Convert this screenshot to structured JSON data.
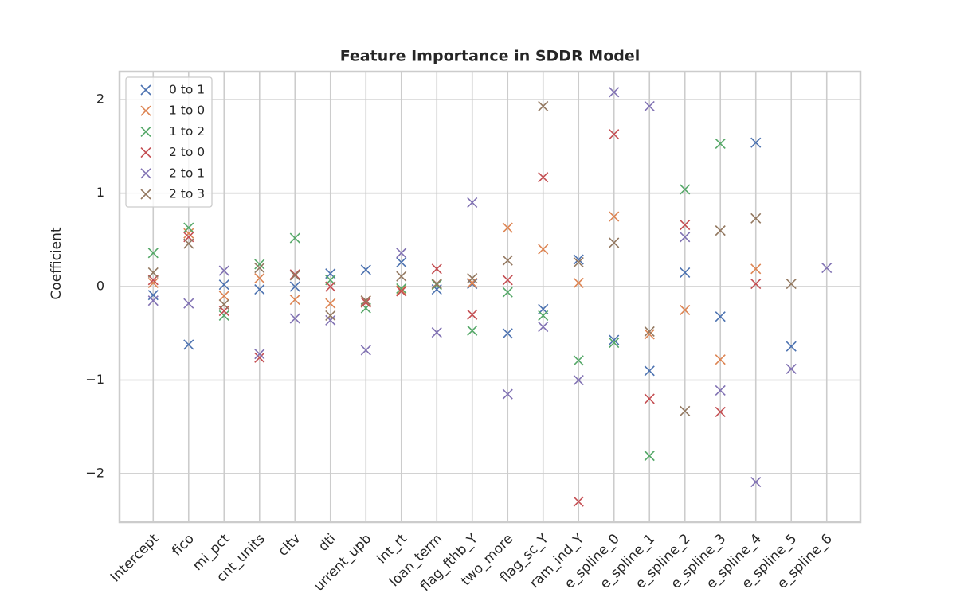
{
  "chart_data": {
    "type": "scatter",
    "title": "Feature Importance in SDDR Model",
    "y_label": "Coefficient",
    "categories": [
      "Intercept",
      "fico",
      "mi_pct",
      "cnt_units",
      "cltv",
      "dti",
      "urrent_upb",
      "int_rt",
      "loan_term",
      "flag_fthb_Y",
      "two_more",
      "flag_sc_Y",
      "ram_ind_Y",
      "e_spline_0",
      "e_spline_1",
      "e_spline_2",
      "e_spline_3",
      "e_spline_4",
      "e_spline_5",
      "e_spline_6"
    ],
    "series": [
      {
        "name": "0 to 1",
        "color": "#4c72b0",
        "values": [
          -0.09,
          -0.62,
          0.02,
          -0.03,
          0.0,
          0.14,
          0.18,
          0.26,
          -0.03,
          0.03,
          -0.5,
          -0.24,
          0.29,
          -0.57,
          -0.9,
          0.15,
          -0.32,
          1.54,
          -0.64,
          null
        ]
      },
      {
        "name": "1 to 0",
        "color": "#dd8452",
        "values": [
          0.04,
          0.57,
          -0.1,
          0.09,
          -0.14,
          -0.18,
          -0.15,
          -0.04,
          0.03,
          0.04,
          0.63,
          0.4,
          0.04,
          0.75,
          -0.51,
          -0.25,
          -0.78,
          0.19,
          null,
          null
        ]
      },
      {
        "name": "1 to 2",
        "color": "#55a868",
        "values": [
          0.36,
          0.63,
          -0.31,
          0.24,
          0.52,
          0.07,
          -0.23,
          -0.02,
          0.02,
          -0.47,
          -0.06,
          -0.31,
          -0.79,
          -0.6,
          -1.81,
          1.04,
          1.53,
          null,
          null,
          null
        ]
      },
      {
        "name": "2 to 0",
        "color": "#c44e52",
        "values": [
          0.07,
          0.53,
          -0.26,
          -0.76,
          0.13,
          0.0,
          -0.17,
          -0.05,
          0.19,
          -0.3,
          0.07,
          1.17,
          -2.3,
          1.63,
          -1.2,
          0.66,
          -1.34,
          0.03,
          null,
          null
        ]
      },
      {
        "name": "2 to 1",
        "color": "#8172b3",
        "values": [
          -0.15,
          -0.18,
          0.17,
          -0.72,
          -0.34,
          -0.36,
          -0.68,
          0.36,
          -0.49,
          0.9,
          -1.15,
          -0.43,
          -1.0,
          2.08,
          1.93,
          0.53,
          -1.11,
          -2.09,
          -0.88,
          0.2
        ]
      },
      {
        "name": "2 to 3",
        "color": "#937860",
        "values": [
          0.15,
          0.46,
          -0.19,
          0.2,
          0.12,
          -0.31,
          -0.15,
          0.11,
          0.03,
          0.09,
          0.28,
          1.93,
          0.26,
          0.47,
          -0.48,
          -1.33,
          0.6,
          0.73,
          0.03,
          null
        ]
      }
    ],
    "ylim": [
      -2.52,
      2.3
    ],
    "yticks": [
      {
        "value": -2,
        "label": "−2"
      },
      {
        "value": -1,
        "label": "−1"
      },
      0,
      1,
      2
    ],
    "grid": true,
    "legend": "upper left"
  }
}
